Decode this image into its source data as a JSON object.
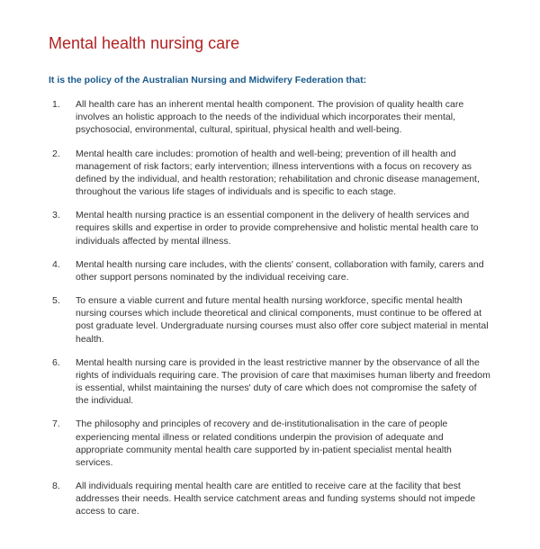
{
  "title": {
    "text": "Mental health nursing care",
    "color": "#b22222"
  },
  "intro": {
    "text": "It is the policy of the Australian Nursing and Midwifery Federation that:",
    "color": "#1a5a8a"
  },
  "body_color": "#333333",
  "background_color": "#ffffff",
  "font_family": "Arial, Helvetica, sans-serif",
  "items": [
    "All health care has an inherent mental health component. The provision of quality health care involves an holistic approach to the needs of the individual which incorporates their mental, psychosocial, environmental, cultural, spiritual, physical health and well-being.",
    "Mental health care includes: promotion of health and well-being; prevention of ill health and management of risk factors; early intervention; illness interventions with a focus on recovery as defined by the individual, and health restoration; rehabilitation and chronic disease management, throughout the various life stages of individuals and is specific to each stage.",
    "Mental health nursing practice is an essential component in the delivery of health services and requires skills and expertise in order to provide comprehensive and holistic mental health care to individuals affected by mental illness.",
    "Mental health nursing care includes, with the clients' consent, collaboration with family, carers and other support persons nominated by the individual receiving care.",
    "To ensure a viable current and future mental health nursing workforce, specific mental health nursing courses which include theoretical and clinical components, must continue to be offered at post graduate level. Undergraduate nursing courses must also offer core subject material in mental health.",
    "Mental health nursing care is provided in the least restrictive manner by the observance of all the rights of individuals requiring care. The provision of care that maximises human liberty and freedom is essential, whilst maintaining the nurses' duty of care which does not compromise the safety of the individual.",
    "The philosophy and principles of recovery and de-institutionalisation in the care of people experiencing mental illness or related conditions underpin the provision of adequate and appropriate community mental health care supported by in-patient specialist mental health services.",
    "All individuals requiring mental health care are entitled to receive care at the facility that best addresses their needs. Health service catchment areas and funding systems should not impede access to care."
  ]
}
